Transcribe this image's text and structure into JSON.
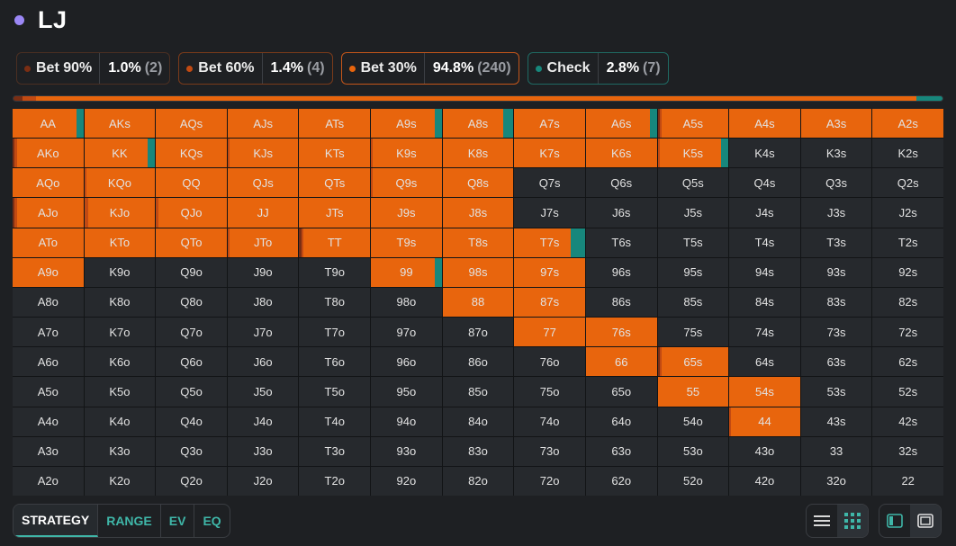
{
  "position": {
    "name": "LJ",
    "dot_color": "#9b87f5"
  },
  "actions": [
    {
      "label": "Bet 90%",
      "pct": "1.0%",
      "count": "(2)",
      "color": "#7a2e14",
      "freq": 1.0
    },
    {
      "label": "Bet 60%",
      "pct": "1.4%",
      "count": "(4)",
      "color": "#c24a12",
      "freq": 1.4
    },
    {
      "label": "Bet 30%",
      "pct": "94.8%",
      "count": "(240)",
      "color": "#e8650d",
      "freq": 94.8
    },
    {
      "label": "Check",
      "pct": "2.8%",
      "count": "(7)",
      "color": "#17877c",
      "freq": 2.8
    }
  ],
  "grid": {
    "colors": {
      "b90": "#7a2e14",
      "b60": "#c24a12",
      "b30": "#e8650d",
      "chk": "#17877c",
      "empty": "#26292d"
    },
    "rows": [
      [
        "AA",
        "AKs",
        "AQs",
        "AJs",
        "ATs",
        "A9s",
        "A8s",
        "A7s",
        "A6s",
        "A5s",
        "A4s",
        "A3s",
        "A2s"
      ],
      [
        "AKo",
        "KK",
        "KQs",
        "KJs",
        "KTs",
        "K9s",
        "K8s",
        "K7s",
        "K6s",
        "K5s",
        "K4s",
        "K3s",
        "K2s"
      ],
      [
        "AQo",
        "KQo",
        "QQ",
        "QJs",
        "QTs",
        "Q9s",
        "Q8s",
        "Q7s",
        "Q6s",
        "Q5s",
        "Q4s",
        "Q3s",
        "Q2s"
      ],
      [
        "AJo",
        "KJo",
        "QJo",
        "JJ",
        "JTs",
        "J9s",
        "J8s",
        "J7s",
        "J6s",
        "J5s",
        "J4s",
        "J3s",
        "J2s"
      ],
      [
        "ATo",
        "KTo",
        "QTo",
        "JTo",
        "TT",
        "T9s",
        "T8s",
        "T7s",
        "T6s",
        "T5s",
        "T4s",
        "T3s",
        "T2s"
      ],
      [
        "A9o",
        "K9o",
        "Q9o",
        "J9o",
        "T9o",
        "99",
        "98s",
        "97s",
        "96s",
        "95s",
        "94s",
        "93s",
        "92s"
      ],
      [
        "A8o",
        "K8o",
        "Q8o",
        "J8o",
        "T8o",
        "98o",
        "88",
        "87s",
        "86s",
        "85s",
        "84s",
        "83s",
        "82s"
      ],
      [
        "A7o",
        "K7o",
        "Q7o",
        "J7o",
        "T7o",
        "97o",
        "87o",
        "77",
        "76s",
        "75s",
        "74s",
        "73s",
        "72s"
      ],
      [
        "A6o",
        "K6o",
        "Q6o",
        "J6o",
        "T6o",
        "96o",
        "86o",
        "76o",
        "66",
        "65s",
        "64s",
        "63s",
        "62s"
      ],
      [
        "A5o",
        "K5o",
        "Q5o",
        "J5o",
        "T5o",
        "95o",
        "85o",
        "75o",
        "65o",
        "55",
        "54s",
        "53s",
        "52s"
      ],
      [
        "A4o",
        "K4o",
        "Q4o",
        "J4o",
        "T4o",
        "94o",
        "84o",
        "74o",
        "64o",
        "54o",
        "44",
        "43s",
        "42s"
      ],
      [
        "A3o",
        "K3o",
        "Q3o",
        "J3o",
        "T3o",
        "93o",
        "83o",
        "73o",
        "63o",
        "53o",
        "43o",
        "33",
        "32s"
      ],
      [
        "A2o",
        "K2o",
        "Q2o",
        "J2o",
        "T2o",
        "92o",
        "82o",
        "72o",
        "62o",
        "52o",
        "42o",
        "32o",
        "22"
      ]
    ],
    "strategy": {
      "AA": [
        0,
        0,
        90,
        10
      ],
      "AKs": [
        0,
        0,
        100,
        0
      ],
      "AQs": [
        0,
        0,
        100,
        0
      ],
      "AJs": [
        0,
        0,
        100,
        0
      ],
      "ATs": [
        0,
        0,
        100,
        0
      ],
      "A9s": [
        0,
        0,
        90,
        10
      ],
      "A8s": [
        0,
        0,
        85,
        15
      ],
      "A7s": [
        0,
        0,
        100,
        0
      ],
      "A6s": [
        0,
        0,
        90,
        10
      ],
      "A5s": [
        3,
        3,
        94,
        0
      ],
      "A4s": [
        0,
        0,
        100,
        0
      ],
      "A3s": [
        0,
        0,
        100,
        0
      ],
      "A2s": [
        0,
        0,
        100,
        0
      ],
      "AKo": [
        3,
        3,
        94,
        0
      ],
      "KK": [
        0,
        0,
        90,
        10
      ],
      "KQs": [
        0,
        0,
        100,
        0
      ],
      "KJs": [
        0,
        3,
        97,
        0
      ],
      "KTs": [
        0,
        0,
        100,
        0
      ],
      "K9s": [
        0,
        3,
        97,
        0
      ],
      "K8s": [
        0,
        0,
        100,
        0
      ],
      "K7s": [
        0,
        0,
        100,
        0
      ],
      "K6s": [
        0,
        0,
        100,
        0
      ],
      "K5s": [
        0,
        3,
        87,
        10
      ],
      "AQo": [
        0,
        0,
        100,
        0
      ],
      "KQo": [
        0,
        3,
        97,
        0
      ],
      "QQ": [
        0,
        0,
        100,
        0
      ],
      "QJs": [
        0,
        0,
        100,
        0
      ],
      "QTs": [
        0,
        0,
        100,
        0
      ],
      "Q9s": [
        0,
        3,
        97,
        0
      ],
      "Q8s": [
        0,
        0,
        100,
        0
      ],
      "AJo": [
        3,
        3,
        94,
        0
      ],
      "KJo": [
        0,
        5,
        95,
        0
      ],
      "QJo": [
        0,
        3,
        97,
        0
      ],
      "JJ": [
        0,
        0,
        100,
        0
      ],
      "JTs": [
        0,
        0,
        100,
        0
      ],
      "J9s": [
        0,
        0,
        100,
        0
      ],
      "J8s": [
        0,
        0,
        100,
        0
      ],
      "ATo": [
        0,
        0,
        100,
        0
      ],
      "KTo": [
        0,
        0,
        100,
        0
      ],
      "QTo": [
        0,
        0,
        100,
        0
      ],
      "JTo": [
        0,
        3,
        97,
        0
      ],
      "TT": [
        3,
        3,
        94,
        0
      ],
      "T9s": [
        0,
        0,
        100,
        0
      ],
      "T8s": [
        0,
        0,
        100,
        0
      ],
      "T7s": [
        0,
        0,
        80,
        20
      ],
      "A9o": [
        0,
        0,
        100,
        0
      ],
      "99": [
        0,
        0,
        90,
        10
      ],
      "98s": [
        0,
        0,
        100,
        0
      ],
      "97s": [
        0,
        0,
        100,
        0
      ],
      "88": [
        0,
        0,
        100,
        0
      ],
      "87s": [
        0,
        0,
        100,
        0
      ],
      "77": [
        0,
        0,
        100,
        0
      ],
      "76s": [
        0,
        0,
        100,
        0
      ],
      "66": [
        0,
        0,
        100,
        0
      ],
      "65s": [
        3,
        3,
        94,
        0
      ],
      "55": [
        0,
        0,
        100,
        0
      ],
      "54s": [
        0,
        0,
        100,
        0
      ],
      "44": [
        0,
        3,
        97,
        0
      ]
    }
  },
  "tabs": [
    {
      "label": "STRATEGY",
      "active": true
    },
    {
      "label": "RANGE",
      "active": false
    },
    {
      "label": "EV",
      "active": false
    },
    {
      "label": "EQ",
      "active": false
    }
  ],
  "view_controls": [
    {
      "group": "layout",
      "buttons": [
        {
          "icon": "list-view-icon",
          "active": false
        },
        {
          "icon": "grid-view-icon",
          "active": true
        }
      ]
    },
    {
      "group": "panel",
      "buttons": [
        {
          "icon": "sidebar-panel-icon",
          "active": false
        },
        {
          "icon": "full-panel-icon",
          "active": true
        }
      ]
    }
  ]
}
